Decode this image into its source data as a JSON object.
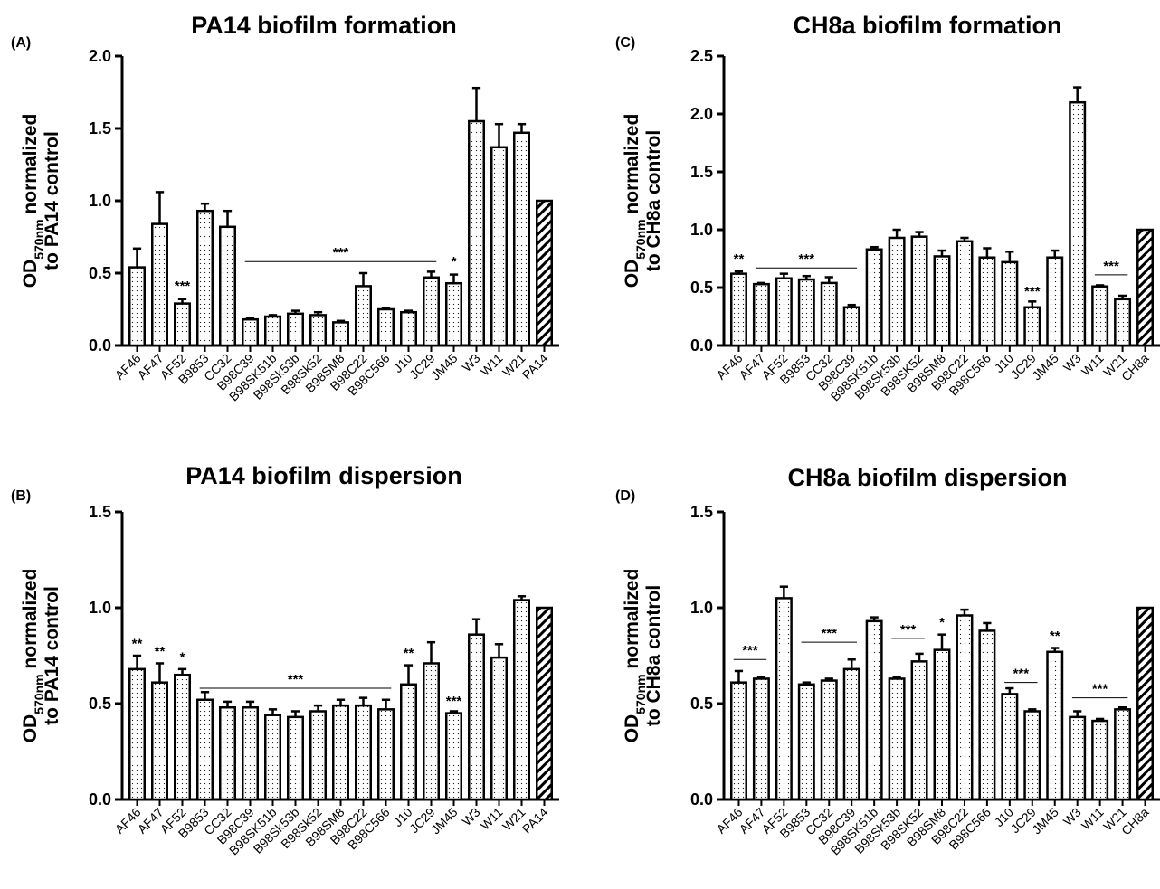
{
  "chart_data": [
    {
      "panel_label": "(A)",
      "type": "bar",
      "title": "PA14 biofilm formation",
      "ylabel_pre": "OD",
      "ylabel_sub": "570nm",
      "ylabel_post": " normalized",
      "ylabel_line2": "to PA14 control",
      "ylim": [
        0,
        2.0
      ],
      "yticks": [
        "0.0",
        "0.5",
        "1.0",
        "1.5",
        "2.0"
      ],
      "yticks_values": [
        0,
        0.5,
        1.0,
        1.5,
        2.0
      ],
      "categories": [
        "AF46",
        "AF47",
        "AF52",
        "B9853",
        "CC32",
        "B98C39",
        "B98SK51b",
        "B98Sk53b",
        "B98Sk52",
        "B98SM8",
        "B98C22",
        "B98C566",
        "J10",
        "JC29",
        "JM45",
        "W3",
        "W11",
        "W21",
        "PA14"
      ],
      "values": [
        0.54,
        0.84,
        0.29,
        0.93,
        0.82,
        0.18,
        0.2,
        0.22,
        0.21,
        0.16,
        0.41,
        0.25,
        0.23,
        0.47,
        0.43,
        1.55,
        1.37,
        1.47,
        1.0
      ],
      "errors": [
        0.13,
        0.22,
        0.03,
        0.05,
        0.11,
        0.01,
        0.01,
        0.02,
        0.02,
        0.01,
        0.09,
        0.01,
        0.01,
        0.04,
        0.06,
        0.23,
        0.16,
        0.06,
        0.0
      ],
      "control_index": 18,
      "annotations": [
        {
          "text": "***",
          "bar": 2,
          "y": 0.38
        },
        {
          "text": "*",
          "bar": 14,
          "y": 0.55
        },
        {
          "text": "***",
          "from": 5,
          "to": 13,
          "y": 0.58,
          "line": true
        }
      ]
    },
    {
      "panel_label": "(B)",
      "type": "bar",
      "title": "PA14 biofilm dispersion",
      "ylabel_pre": "OD",
      "ylabel_sub": "570nm",
      "ylabel_post": " normalized",
      "ylabel_line2": "to PA14 control",
      "ylim": [
        0,
        1.5
      ],
      "yticks": [
        "0.0",
        "0.5",
        "1.0",
        "1.5"
      ],
      "yticks_values": [
        0,
        0.5,
        1.0,
        1.5
      ],
      "categories": [
        "AF46",
        "AF47",
        "AF52",
        "B9853",
        "CC32",
        "B98C39",
        "B98SK51b",
        "B98Sk53b",
        "B98Sk52",
        "B98SM8",
        "B98C22",
        "B98C566",
        "J10",
        "JC29",
        "JM45",
        "W3",
        "W11",
        "W21",
        "PA14"
      ],
      "values": [
        0.68,
        0.61,
        0.65,
        0.52,
        0.48,
        0.48,
        0.44,
        0.43,
        0.46,
        0.49,
        0.49,
        0.47,
        0.6,
        0.71,
        0.45,
        0.86,
        0.74,
        1.04,
        1.0
      ],
      "errors": [
        0.07,
        0.1,
        0.03,
        0.04,
        0.03,
        0.03,
        0.03,
        0.03,
        0.03,
        0.03,
        0.04,
        0.05,
        0.1,
        0.11,
        0.01,
        0.08,
        0.07,
        0.02,
        0.0
      ],
      "control_index": 18,
      "annotations": [
        {
          "text": "**",
          "bar": 0,
          "y": 0.79
        },
        {
          "text": "**",
          "bar": 1,
          "y": 0.75
        },
        {
          "text": "*",
          "bar": 2,
          "y": 0.72
        },
        {
          "text": "***",
          "from": 3,
          "to": 11,
          "y": 0.58,
          "line": true
        },
        {
          "text": "**",
          "bar": 12,
          "y": 0.74
        },
        {
          "text": "***",
          "bar": 14,
          "y": 0.49
        }
      ]
    },
    {
      "panel_label": "(C)",
      "type": "bar",
      "title": "CH8a biofilm formation",
      "ylabel_pre": "OD",
      "ylabel_sub": "570nm",
      "ylabel_post": " normalized",
      "ylabel_line2": "to CH8a control",
      "ylim": [
        0,
        2.5
      ],
      "yticks": [
        "0.0",
        "0.5",
        "1.0",
        "1.5",
        "2.0",
        "2.5"
      ],
      "yticks_values": [
        0,
        0.5,
        1.0,
        1.5,
        2.0,
        2.5
      ],
      "categories": [
        "AF46",
        "AF47",
        "AF52",
        "B9853",
        "CC32",
        "B98C39",
        "B98SK51b",
        "B98Sk53b",
        "B98SK52",
        "B98SM8",
        "B98C22",
        "B98C566",
        "J10",
        "JC29",
        "JM45",
        "W3",
        "W11",
        "W21",
        "CH8a"
      ],
      "values": [
        0.62,
        0.53,
        0.58,
        0.57,
        0.54,
        0.33,
        0.83,
        0.93,
        0.94,
        0.77,
        0.9,
        0.76,
        0.72,
        0.33,
        0.76,
        2.1,
        0.51,
        0.4,
        1.0
      ],
      "errors": [
        0.02,
        0.01,
        0.04,
        0.03,
        0.05,
        0.02,
        0.02,
        0.07,
        0.04,
        0.05,
        0.03,
        0.08,
        0.09,
        0.05,
        0.06,
        0.13,
        0.01,
        0.03,
        0.0
      ],
      "control_index": 18,
      "annotations": [
        {
          "text": "**",
          "bar": 0,
          "y": 0.71
        },
        {
          "text": "***",
          "from": 1,
          "to": 5,
          "y": 0.67,
          "line": true
        },
        {
          "text": "***",
          "bar": 13,
          "y": 0.43
        },
        {
          "text": "***",
          "from": 16,
          "to": 17,
          "y": 0.61,
          "line": true
        }
      ]
    },
    {
      "panel_label": "(D)",
      "type": "bar",
      "title": "CH8a biofilm dispersion",
      "ylabel_pre": "OD",
      "ylabel_sub": "570nm",
      "ylabel_post": " normalized",
      "ylabel_line2": "to CH8a control",
      "ylim": [
        0,
        1.5
      ],
      "yticks": [
        "0.0",
        "0.5",
        "1.0",
        "1.5"
      ],
      "yticks_values": [
        0,
        0.5,
        1.0,
        1.5
      ],
      "categories": [
        "AF46",
        "AF47",
        "AF52",
        "B9853",
        "CC32",
        "B98C39",
        "B98SK51b",
        "B98Sk53b",
        "B98SK52",
        "B98SM8",
        "B98C22",
        "B98C566",
        "J10",
        "JC29",
        "JM45",
        "W3",
        "W11",
        "W21",
        "CH8a"
      ],
      "values": [
        0.61,
        0.63,
        1.05,
        0.6,
        0.62,
        0.68,
        0.93,
        0.63,
        0.72,
        0.78,
        0.96,
        0.88,
        0.55,
        0.46,
        0.77,
        0.43,
        0.41,
        0.47,
        1.0
      ],
      "errors": [
        0.06,
        0.01,
        0.06,
        0.01,
        0.01,
        0.05,
        0.02,
        0.01,
        0.04,
        0.08,
        0.03,
        0.04,
        0.03,
        0.01,
        0.02,
        0.03,
        0.01,
        0.01,
        0.0
      ],
      "control_index": 18,
      "annotations": [
        {
          "text": "***",
          "from": 0,
          "to": 1,
          "y": 0.73,
          "line": true
        },
        {
          "text": "***",
          "from": 3,
          "to": 5,
          "y": 0.82,
          "line": true
        },
        {
          "text": "***",
          "from": 7,
          "to": 8,
          "y": 0.84,
          "line": true
        },
        {
          "text": "*",
          "bar": 9,
          "y": 0.9
        },
        {
          "text": "***",
          "from": 12,
          "to": 13,
          "y": 0.61,
          "line": true
        },
        {
          "text": "**",
          "bar": 14,
          "y": 0.83
        },
        {
          "text": "***",
          "from": 15,
          "to": 17,
          "y": 0.53,
          "line": true
        }
      ]
    }
  ]
}
